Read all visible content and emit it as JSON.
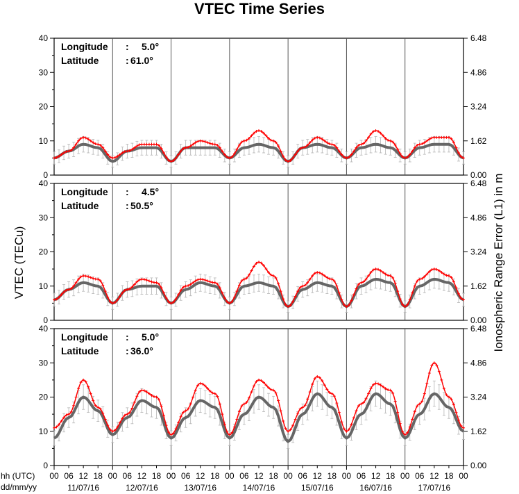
{
  "chart_data": {
    "type": "line",
    "title": "VTEC Time Series",
    "ylabel_left": "VTEC (TECu)",
    "ylabel_right": "Ionospheric Range Error (L1) in m",
    "x_caption_line1": "hh (UTC)",
    "x_caption_line2": "dd/mm/yy",
    "hour_ticks": [
      "00",
      "06",
      "12",
      "18"
    ],
    "final_hour_tick": "00",
    "days": [
      "11/07/16",
      "12/07/16",
      "13/07/16",
      "14/07/16",
      "15/07/16",
      "16/07/16",
      "17/07/16"
    ],
    "ylim": [
      0,
      40
    ],
    "left_ticks": [
      "0",
      "10",
      "20",
      "30",
      "40"
    ],
    "right_ticks": [
      "0.00",
      "1.62",
      "3.24",
      "4.86",
      "6.48"
    ],
    "colors": {
      "measured": "#ff0000",
      "reference": "#666666",
      "error_bars": "#b4b4b4",
      "day_lines": "#555555"
    },
    "panels": [
      {
        "longitude_label": "Longitude",
        "longitude_value": "5.0°",
        "latitude_label": "Latitude",
        "latitude_value": "61.0°",
        "series": [
          {
            "name": "measured",
            "x_hours": [
              0,
              6,
              12,
              18,
              24,
              30,
              36,
              42,
              48,
              54,
              60,
              66,
              72,
              78,
              84,
              90,
              96,
              102,
              108,
              114,
              120,
              126,
              132,
              138,
              144,
              150,
              156,
              162,
              168
            ],
            "values": [
              5,
              7,
              11,
              9,
              5,
              7,
              9,
              9,
              4,
              8,
              10,
              9,
              5,
              10,
              13,
              10,
              4,
              8,
              11,
              9,
              5,
              9,
              13,
              10,
              5,
              9,
              11,
              11,
              5
            ]
          },
          {
            "name": "reference",
            "x_hours": [
              0,
              6,
              12,
              18,
              24,
              30,
              36,
              42,
              48,
              54,
              60,
              66,
              72,
              78,
              84,
              90,
              96,
              102,
              108,
              114,
              120,
              126,
              132,
              138,
              144,
              150,
              156,
              162,
              168
            ],
            "values": [
              5,
              7,
              9,
              8,
              4,
              7,
              8,
              8,
              4,
              8,
              8,
              8,
              5,
              8,
              9,
              8,
              4,
              8,
              9,
              8,
              5,
              8,
              9,
              8,
              5,
              8,
              9,
              9,
              5
            ]
          }
        ]
      },
      {
        "longitude_label": "Longitude",
        "longitude_value": "4.5°",
        "latitude_label": "Latitude",
        "latitude_value": "50.5°",
        "series": [
          {
            "name": "measured",
            "x_hours": [
              0,
              6,
              12,
              18,
              24,
              30,
              36,
              42,
              48,
              54,
              60,
              66,
              72,
              78,
              84,
              90,
              96,
              102,
              108,
              114,
              120,
              126,
              132,
              138,
              144,
              150,
              156,
              162,
              168
            ],
            "values": [
              6,
              9,
              13,
              12,
              5,
              9,
              12,
              11,
              5,
              10,
              12,
              11,
              5,
              12,
              17,
              13,
              4,
              10,
              14,
              12,
              4,
              11,
              15,
              13,
              4,
              12,
              15,
              13,
              6
            ]
          },
          {
            "name": "reference",
            "x_hours": [
              0,
              6,
              12,
              18,
              24,
              30,
              36,
              42,
              48,
              54,
              60,
              66,
              72,
              78,
              84,
              90,
              96,
              102,
              108,
              114,
              120,
              126,
              132,
              138,
              144,
              150,
              156,
              162,
              168
            ],
            "values": [
              6,
              9,
              11,
              10,
              5,
              9,
              10,
              10,
              5,
              9,
              11,
              10,
              5,
              10,
              11,
              10,
              4,
              9,
              11,
              10,
              4,
              10,
              12,
              11,
              4,
              10,
              12,
              11,
              6
            ]
          }
        ]
      },
      {
        "longitude_label": "Longitude",
        "longitude_value": "5.0°",
        "latitude_label": "Latitude",
        "latitude_value": "36.0°",
        "series": [
          {
            "name": "measured",
            "x_hours": [
              0,
              6,
              12,
              18,
              24,
              30,
              36,
              42,
              48,
              54,
              60,
              66,
              72,
              78,
              84,
              90,
              96,
              102,
              108,
              114,
              120,
              126,
              132,
              138,
              144,
              150,
              156,
              162,
              168
            ],
            "values": [
              11,
              15,
              25,
              17,
              10,
              15,
              22,
              20,
              9,
              16,
              24,
              21,
              9,
              18,
              25,
              22,
              10,
              17,
              26,
              21,
              10,
              18,
              24,
              22,
              9,
              18,
              30,
              20,
              11
            ]
          },
          {
            "name": "reference",
            "x_hours": [
              0,
              6,
              12,
              18,
              24,
              30,
              36,
              42,
              48,
              54,
              60,
              66,
              72,
              78,
              84,
              90,
              96,
              102,
              108,
              114,
              120,
              126,
              132,
              138,
              144,
              150,
              156,
              162,
              168
            ],
            "values": [
              8,
              14,
              20,
              16,
              9,
              14,
              19,
              17,
              8,
              14,
              19,
              17,
              8,
              15,
              20,
              17,
              7,
              15,
              21,
              17,
              8,
              15,
              21,
              18,
              8,
              15,
              21,
              17,
              10
            ]
          }
        ]
      }
    ]
  }
}
